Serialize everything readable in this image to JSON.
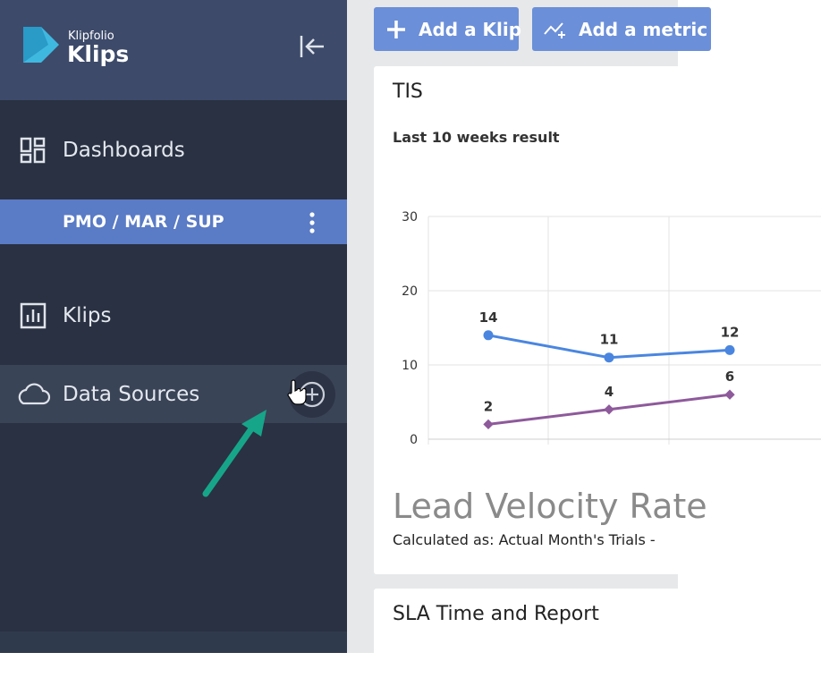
{
  "sidebar": {
    "logo_small": "Klipfolio",
    "logo_large": "Klips",
    "nav": [
      {
        "label": "Dashboards"
      },
      {
        "label": "PMO / MAR / SUP"
      },
      {
        "label": "Klips"
      },
      {
        "label": "Data Sources"
      }
    ]
  },
  "toolbar": {
    "buttons": [
      "Add a Klip",
      "Add a metric"
    ]
  },
  "cards": [
    {
      "title": "TIS",
      "subtitle": "Last 10 weeks result",
      "chart_data": {
        "type": "line",
        "ylim": [
          0,
          30
        ],
        "yticks": [
          0,
          10,
          20,
          30
        ],
        "grid": true,
        "series": [
          {
            "color": "#4a86e0",
            "values": [
              14,
              11,
              12
            ]
          },
          {
            "color": "#8e5a9b",
            "values": [
              2,
              4,
              6
            ]
          }
        ]
      },
      "heading": "Lead Velocity Rate",
      "note": "Calculated as: Actual Month's Trials -"
    },
    {
      "title": "SLA Time and Report"
    }
  ]
}
